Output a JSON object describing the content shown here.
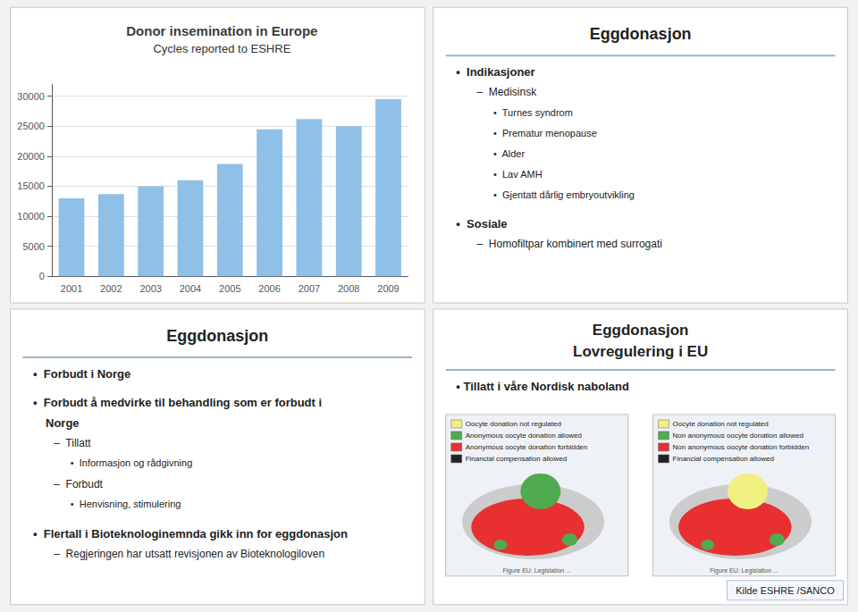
{
  "chart_data": {
    "type": "bar",
    "title": "Donor insemination in Europe",
    "subtitle": "Cycles reported to ESHRE",
    "categories": [
      "2001",
      "2002",
      "2003",
      "2004",
      "2005",
      "2006",
      "2007",
      "2008",
      "2009"
    ],
    "values": [
      13000,
      13700,
      15000,
      16000,
      18700,
      24500,
      26200,
      25000,
      29500
    ],
    "color": "#8FC0E8",
    "ylim": [
      0,
      32000
    ],
    "yticks": [
      0,
      5000,
      10000,
      15000,
      20000,
      25000,
      30000
    ],
    "grid": true,
    "annotations": [
      {
        "title": "Eggdonasjon",
        "items": [
          {
            "text": "•  Indikasjoner",
            "items": [
              {
                "text": "–  Medisinsk",
                "items": [
                  {
                    "text": "•  Turnes syndrom"
                  },
                  {
                    "text": "•  Prematur menopause"
                  },
                  {
                    "text": "•  Alder"
                  },
                  {
                    "text": "•  Lav AMH"
                  },
                  {
                    "text": "•  Gjentatt dårlig embryoutvikling"
                  }
                ]
              }
            ]
          },
          {
            "text": "•  Sosiale",
            "items": [
              {
                "text": "–  Homofiltpar kombinert med surrogati"
              }
            ]
          }
        ]
      },
      {
        "title": "Eggdonasjon",
        "items": [
          {
            "text": "•  Forbudt i Norge"
          },
          {
            "text": "•  Forbudt å medvirke til behandling som er forbudt i\nNorge",
            "items": [
              {
                "text": "–  Tillatt",
                "items": [
                  {
                    "text": "•  Informasjon og rådgivning"
                  }
                ]
              },
              {
                "text": "–  Forbudt",
                "items": [
                  {
                    "text": "•  Henvisning, stimulering"
                  }
                ]
              }
            ]
          },
          {
            "text": "•  Flertall i Bioteknologinemnda gikk inn for eggdonasjon",
            "items": [
              {
                "text": "–  Regjeringen har utsatt revisjonen av Bioteknologiloven"
              }
            ]
          }
        ]
      },
      {
        "title": "Eggdonasjon",
        "subtitle": "Lovregulering i EU",
        "items": [
          {
            "text": "• Tillatt i våre Nordisk naboland"
          }
        ],
        "maps": [
          {
            "color": "#50AA50",
            "legend": [
              {
                "label": "Oocyte donation not regulated",
                "color": "#F0F080"
              },
              {
                "label": "Anonymous oocyte donation allowed",
                "color": "#50AA50"
              },
              {
                "label": "Anonymous oocyte donation forbidden",
                "color": "#E83030"
              },
              {
                "label": "Financial compensation allowed",
                "color": "#222222"
              }
            ],
            "caption": "Figure EU: Legislation ..."
          },
          {
            "color": "#F0F080",
            "legend": [
              {
                "label": "Oocyte donation not regulated",
                "color": "#F0F080"
              },
              {
                "label": "Non anonymous oocyte donation allowed",
                "color": "#50AA50"
              },
              {
                "label": "Non anonymous oocyte donation forbidden",
                "color": "#E83030"
              },
              {
                "label": "Financial compensation allowed",
                "color": "#222222"
              }
            ],
            "caption": "Figure EU: Legislation ..."
          }
        ],
        "credit": "Kilde ESHRE /SANCO"
      }
    ]
  }
}
